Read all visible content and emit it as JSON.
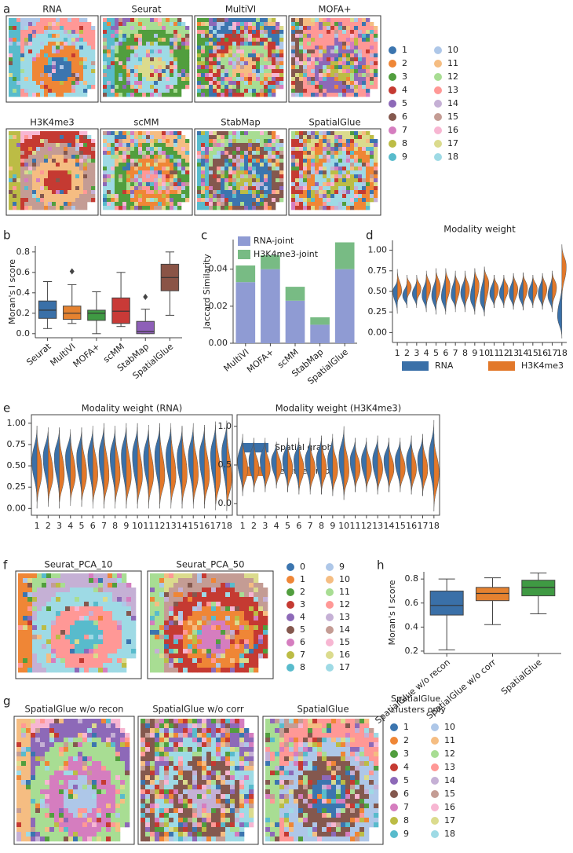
{
  "panel_labels": [
    "a",
    "b",
    "c",
    "d",
    "e",
    "f",
    "g",
    "h"
  ],
  "maps": [
    {
      "titles": [
        "RNA",
        "Seurat",
        "MultiVI",
        "MOFA+",
        "H3K4me3",
        "scMM",
        "StabMap",
        "SpatialGlue"
      ],
      "legend": {
        "labels": [
          "1",
          "2",
          "3",
          "4",
          "5",
          "6",
          "7",
          "8",
          "9",
          "10",
          "11",
          "12",
          "13",
          "14",
          "15",
          "16",
          "17",
          "18"
        ],
        "colors": [
          "#3b75af",
          "#ef8636",
          "#519e3e",
          "#c53a32",
          "#8d69b8",
          "#84584e",
          "#d57dbf",
          "#bcbc45",
          "#58bbcc",
          "#aec7e8",
          "#f5bd82",
          "#a8dd93",
          "#ff9896",
          "#c5b0d5",
          "#c49c94",
          "#f7b6d2",
          "#dbdb8d",
          "#9edae5"
        ]
      }
    },
    {
      "titles": [
        "Seurat_PCA_10",
        "Seurat_PCA_50"
      ],
      "legend": {
        "labels": [
          "0",
          "1",
          "2",
          "3",
          "4",
          "5",
          "6",
          "7",
          "8",
          "9",
          "10",
          "11",
          "12",
          "13",
          "14",
          "15",
          "16",
          "17"
        ],
        "colors": [
          "#3b75af",
          "#ef8636",
          "#519e3e",
          "#c53a32",
          "#8d69b8",
          "#84584e",
          "#d57dbf",
          "#bcbc45",
          "#58bbcc",
          "#aec7e8",
          "#f5bd82",
          "#a8dd93",
          "#ff9896",
          "#c5b0d5",
          "#c49c94",
          "#f7b6d2",
          "#dbdb8d",
          "#9edae5"
        ]
      }
    },
    {
      "titles": [
        "SpatialGlue w/o recon",
        "SpatialGlue w/o corr",
        "SpatialGlue"
      ],
      "legend": {
        "title": [
          "SpatialGlue",
          "clusters only"
        ],
        "labels": [
          "1",
          "2",
          "3",
          "4",
          "5",
          "6",
          "7",
          "8",
          "9",
          "10",
          "11",
          "12",
          "13",
          "14",
          "15",
          "16",
          "17",
          "18"
        ],
        "colors": [
          "#3b75af",
          "#ef8636",
          "#519e3e",
          "#c53a32",
          "#8d69b8",
          "#84584e",
          "#d57dbf",
          "#bcbc45",
          "#58bbcc",
          "#aec7e8",
          "#f5bd82",
          "#a8dd93",
          "#ff9896",
          "#c5b0d5",
          "#c49c94",
          "#f7b6d2",
          "#dbdb8d",
          "#9edae5"
        ]
      }
    }
  ],
  "chart_data": [
    {
      "type": "box",
      "ylabel": "Moran's I score",
      "categories": [
        "Seurat",
        "MultiVI",
        "MOFA+",
        "scMM",
        "StabMap",
        "SpatialGlue"
      ],
      "colors": [
        "#3a70a8",
        "#e58230",
        "#3f9a43",
        "#c93a37",
        "#8e5fb8",
        "#8a5446"
      ],
      "boxes": [
        {
          "min": 0.05,
          "q1": 0.15,
          "median": 0.23,
          "q3": 0.32,
          "max": 0.51
        },
        {
          "min": 0.1,
          "q1": 0.14,
          "median": 0.2,
          "q3": 0.27,
          "max": 0.48,
          "outliers": [
            0.61
          ]
        },
        {
          "min": 0.0,
          "q1": 0.13,
          "median": 0.2,
          "q3": 0.23,
          "max": 0.41
        },
        {
          "min": 0.07,
          "q1": 0.1,
          "median": 0.22,
          "q3": 0.35,
          "max": 0.6
        },
        {
          "min": 0.0,
          "q1": 0.0,
          "median": 0.02,
          "q3": 0.12,
          "max": 0.24,
          "outliers": [
            0.36
          ]
        },
        {
          "min": 0.18,
          "q1": 0.42,
          "median": 0.55,
          "q3": 0.68,
          "max": 0.8
        }
      ],
      "ylim": [
        -0.04,
        0.86
      ],
      "yticks": [
        {
          "value": 0,
          "label": "0.0"
        },
        0.2,
        0.4,
        0.6,
        0.8
      ]
    },
    {
      "type": "bar",
      "stacked": true,
      "ylabel": "Jaccard Similarity",
      "categories": [
        "MultiVI",
        "MOFA+",
        "scMM",
        "StabMap",
        "SpatialGlue"
      ],
      "series": [
        {
          "name": "RNA-joint",
          "color": "#8f9bd3",
          "values": [
            0.033,
            0.04,
            0.023,
            0.01,
            0.04
          ]
        },
        {
          "name": "H3K4me3-joint",
          "color": "#78bb84",
          "values": [
            0.009,
            0.0075,
            0.0075,
            0.004,
            0.0145
          ]
        }
      ],
      "ylim": [
        0,
        0.056
      ],
      "yticks": [
        {
          "value": 0,
          "label": "0.00"
        },
        {
          "value": 0.02,
          "label": "0.02"
        },
        {
          "value": 0.04,
          "label": "0.04"
        }
      ],
      "legend": "upper left"
    },
    {
      "type": "violin",
      "title": "Modality weight",
      "categories": [
        "1",
        "2",
        "3",
        "4",
        "5",
        "6",
        "7",
        "8",
        "9",
        "10",
        "11",
        "12",
        "13",
        "14",
        "15",
        "16",
        "17",
        "18"
      ],
      "series": [
        {
          "name": "RNA",
          "color": "#3a70a8",
          "min": [
            0.23,
            0.3,
            0.3,
            0.25,
            0.22,
            0.22,
            0.28,
            0.25,
            0.22,
            0.2,
            0.3,
            0.3,
            0.28,
            0.27,
            0.3,
            0.28,
            0.25,
            -0.07
          ],
          "median": [
            0.5,
            0.45,
            0.47,
            0.45,
            0.45,
            0.43,
            0.45,
            0.48,
            0.42,
            0.4,
            0.47,
            0.47,
            0.47,
            0.46,
            0.47,
            0.47,
            0.45,
            0.2
          ],
          "max": [
            0.65,
            0.62,
            0.65,
            0.7,
            0.72,
            0.75,
            0.75,
            0.72,
            0.78,
            0.8,
            0.7,
            0.7,
            0.72,
            0.72,
            0.7,
            0.72,
            0.72,
            0.6
          ]
        },
        {
          "name": "H3K4me3",
          "color": "#e2782a",
          "min": [
            0.35,
            0.38,
            0.35,
            0.3,
            0.28,
            0.25,
            0.25,
            0.28,
            0.22,
            0.2,
            0.3,
            0.3,
            0.28,
            0.28,
            0.3,
            0.28,
            0.28,
            0.4
          ],
          "median": [
            0.5,
            0.55,
            0.53,
            0.55,
            0.55,
            0.57,
            0.55,
            0.52,
            0.58,
            0.6,
            0.53,
            0.53,
            0.53,
            0.54,
            0.53,
            0.53,
            0.55,
            0.8
          ],
          "max": [
            0.77,
            0.7,
            0.7,
            0.75,
            0.78,
            0.78,
            0.72,
            0.75,
            0.78,
            0.8,
            0.7,
            0.7,
            0.72,
            0.73,
            0.7,
            0.72,
            0.75,
            1.07
          ]
        }
      ],
      "ylim": [
        -0.12,
        1.12
      ],
      "yticks": [
        {
          "value": 0,
          "label": "0.00"
        },
        0.25,
        {
          "value": 0.5,
          "label": "0.50"
        },
        0.75,
        {
          "value": 1,
          "label": "1.00"
        }
      ],
      "legend": "lower center"
    },
    {
      "type": "violin",
      "title": "Modality weight (RNA)",
      "categories": [
        "1",
        "2",
        "3",
        "4",
        "5",
        "6",
        "7",
        "8",
        "9",
        "10",
        "11",
        "12",
        "13",
        "14",
        "15",
        "16",
        "17",
        "18"
      ],
      "series": [
        {
          "name": "Spatial graph",
          "color": "#3a70a8",
          "min": [
            0.08,
            0.1,
            0.08,
            0.1,
            0.1,
            0.08,
            0.05,
            0.08,
            0.05,
            0.05,
            0.08,
            0.05,
            0.08,
            0.05,
            0.05,
            0.05,
            0.05,
            0.05
          ],
          "median": [
            0.55,
            0.6,
            0.6,
            0.6,
            0.6,
            0.6,
            0.62,
            0.6,
            0.62,
            0.62,
            0.6,
            0.62,
            0.62,
            0.6,
            0.6,
            0.62,
            0.62,
            0.65
          ],
          "max": [
            0.97,
            0.95,
            0.95,
            0.93,
            0.95,
            0.97,
            1.0,
            0.97,
            1.0,
            1.0,
            0.98,
            1.0,
            1.0,
            0.97,
            1.0,
            0.98,
            1.02,
            1.03
          ]
        },
        {
          "name": "Feature graph",
          "color": "#e2782a",
          "min": [
            0.0,
            0.02,
            0.0,
            0.03,
            0.02,
            0.0,
            0.0,
            0.0,
            0.0,
            0.0,
            0.0,
            0.0,
            0.0,
            0.0,
            0.0,
            0.0,
            -0.02,
            -0.03
          ],
          "median": [
            0.45,
            0.4,
            0.4,
            0.4,
            0.4,
            0.4,
            0.38,
            0.4,
            0.38,
            0.38,
            0.4,
            0.38,
            0.38,
            0.4,
            0.4,
            0.38,
            0.38,
            0.35
          ],
          "max": [
            0.92,
            0.9,
            0.92,
            0.9,
            0.9,
            0.92,
            0.95,
            0.92,
            0.95,
            0.95,
            0.92,
            0.95,
            0.95,
            0.95,
            0.95,
            0.95,
            0.98,
            0.97
          ]
        }
      ],
      "ylim": [
        -0.08,
        1.1
      ],
      "yticks": [
        {
          "value": 0,
          "label": "0.00"
        },
        0.25,
        {
          "value": 0.5,
          "label": "0.50"
        },
        0.75,
        {
          "value": 1,
          "label": "1.00"
        }
      ],
      "legend": "right"
    },
    {
      "type": "violin",
      "title": "Modality weight (H3K4me3)",
      "categories": [
        "1",
        "2",
        "3",
        "4",
        "5",
        "6",
        "7",
        "8",
        "9",
        "10",
        "11",
        "12",
        "13",
        "14",
        "15",
        "16",
        "17",
        "18"
      ],
      "series": [
        {
          "color": "#3a70a8",
          "min": [
            0.1,
            0.15,
            0.15,
            0.2,
            0.15,
            0.12,
            0.15,
            0.12,
            0.1,
            0.05,
            0.15,
            0.15,
            0.12,
            0.15,
            0.15,
            0.12,
            0.1,
            0.0
          ],
          "median": [
            0.55,
            0.56,
            0.56,
            0.55,
            0.56,
            0.56,
            0.56,
            0.56,
            0.56,
            0.58,
            0.56,
            0.56,
            0.56,
            0.56,
            0.56,
            0.56,
            0.57,
            0.6
          ],
          "max": [
            0.9,
            0.85,
            0.85,
            0.8,
            0.85,
            0.85,
            0.85,
            0.88,
            0.9,
            1.0,
            0.85,
            0.85,
            0.88,
            0.85,
            0.85,
            0.88,
            0.9,
            1.08
          ]
        },
        {
          "color": "#e2782a",
          "min": [
            0.1,
            0.15,
            0.15,
            0.2,
            0.15,
            0.12,
            0.12,
            0.12,
            0.1,
            0.05,
            0.15,
            0.15,
            0.12,
            0.15,
            0.15,
            0.12,
            0.1,
            -0.1
          ],
          "median": [
            0.45,
            0.45,
            0.45,
            0.46,
            0.45,
            0.45,
            0.45,
            0.45,
            0.44,
            0.42,
            0.45,
            0.45,
            0.45,
            0.45,
            0.45,
            0.45,
            0.44,
            0.4
          ],
          "max": [
            0.85,
            0.8,
            0.8,
            0.78,
            0.8,
            0.8,
            0.8,
            0.85,
            0.85,
            0.95,
            0.8,
            0.8,
            0.82,
            0.8,
            0.8,
            0.82,
            0.85,
            0.9
          ]
        }
      ],
      "ylim": [
        -0.15,
        1.15
      ],
      "yticks": [
        {
          "value": 0,
          "label": "0.0"
        },
        0.5,
        {
          "value": 1,
          "label": "1.0"
        }
      ]
    },
    {
      "type": "box",
      "ylabel": "Moran's I score",
      "categories": [
        "SpatialGlue w/o recon",
        "SpatialGlue w/o corr",
        "SpatialGlue"
      ],
      "colors": [
        "#3a70a8",
        "#e58230",
        "#3f9a43"
      ],
      "boxes": [
        {
          "min": 0.21,
          "q1": 0.5,
          "median": 0.58,
          "q3": 0.7,
          "max": 0.8
        },
        {
          "min": 0.42,
          "q1": 0.62,
          "median": 0.68,
          "q3": 0.73,
          "max": 0.81
        },
        {
          "min": 0.51,
          "q1": 0.66,
          "median": 0.73,
          "q3": 0.79,
          "max": 0.85
        }
      ],
      "ylim": [
        0.18,
        0.86
      ],
      "yticks": [
        0.2,
        0.4,
        0.6,
        0.8
      ]
    }
  ]
}
